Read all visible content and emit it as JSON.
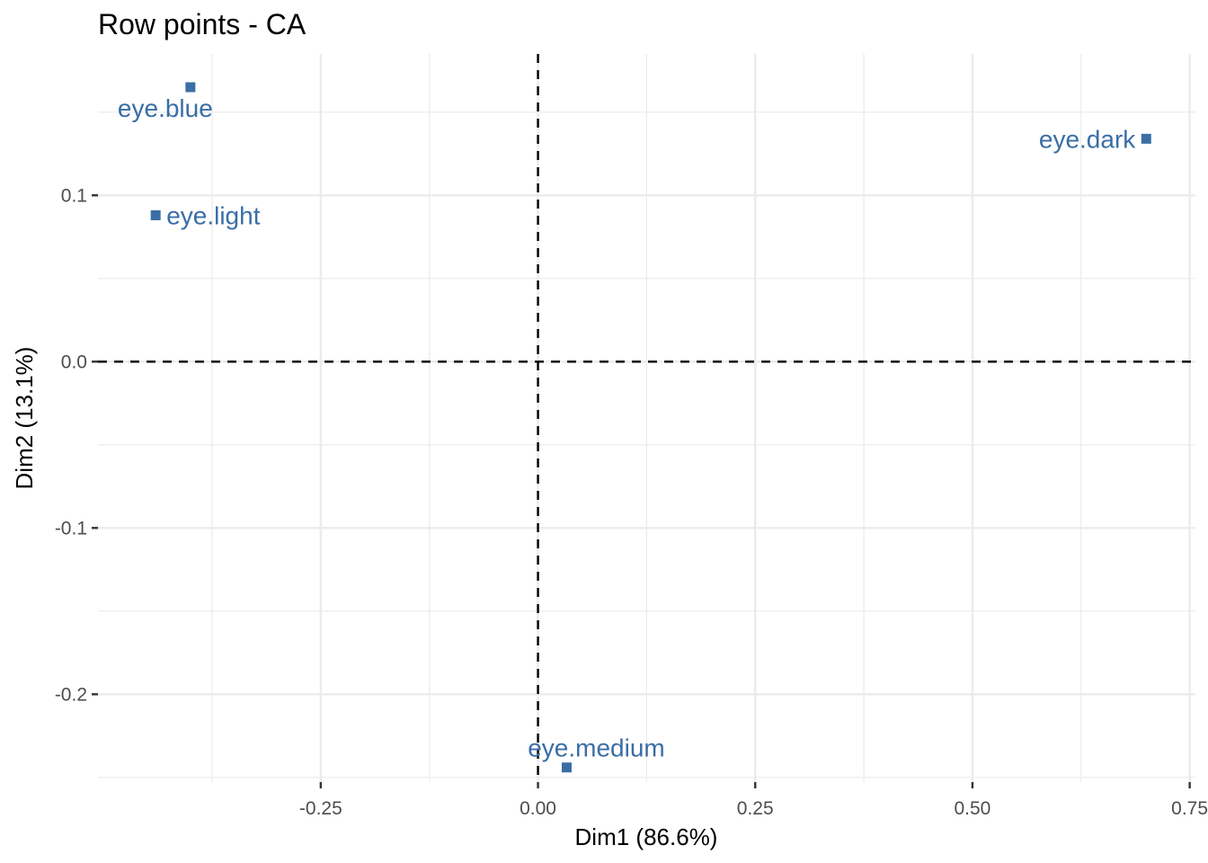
{
  "chart_data": {
    "type": "scatter",
    "title": "Row points - CA",
    "xlabel": "Dim1 (86.6%)",
    "ylabel": "Dim2 (13.1%)",
    "xlim": [
      -0.5064,
      0.7566
    ],
    "ylim": [
      -0.2528,
      0.185
    ],
    "x_ticks": [
      -0.25,
      0.0,
      0.25,
      0.5,
      0.75
    ],
    "x_tick_labels": [
      "-0.25",
      "0.00",
      "0.25",
      "0.50",
      "0.75"
    ],
    "y_ticks": [
      -0.2,
      -0.1,
      0.0,
      0.1
    ],
    "y_tick_labels": [
      "-0.2",
      "-0.1",
      "0.0",
      "0.1"
    ],
    "grid": true,
    "reference_lines": {
      "x": 0,
      "y": 0
    },
    "point_color": "#3A6EA5",
    "points": [
      {
        "label": "eye.blue",
        "x": -0.4,
        "y": 0.165
      },
      {
        "label": "eye.light",
        "x": -0.44,
        "y": 0.088
      },
      {
        "label": "eye.medium",
        "x": 0.033,
        "y": -0.244
      },
      {
        "label": "eye.dark",
        "x": 0.7,
        "y": 0.134
      }
    ]
  }
}
